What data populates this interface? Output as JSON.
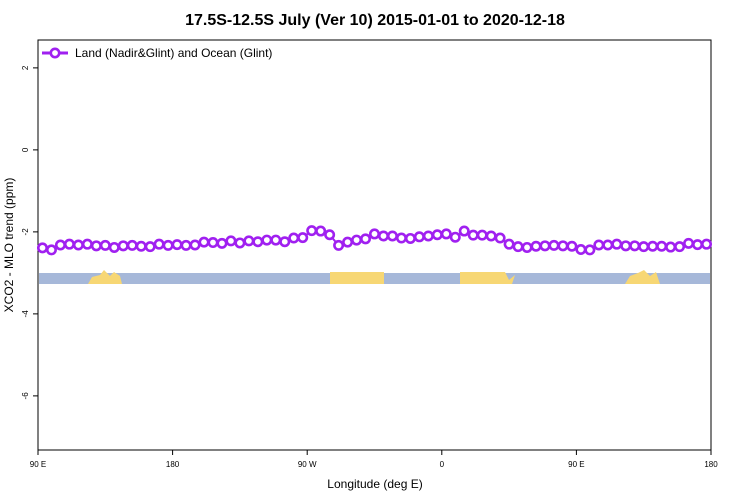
{
  "chart_data": {
    "type": "line",
    "title": "17.5S-12.5S July (Ver 10)   2015-01-01 to 2020-12-18",
    "x_label": "Longitude (deg E)",
    "y_label": "XCO2 - MLO trend (ppm)",
    "x": [
      93,
      99,
      105,
      111,
      117,
      123,
      129,
      135,
      141,
      147,
      153,
      159,
      165,
      171,
      177,
      183,
      189,
      195,
      201,
      207,
      213,
      219,
      225,
      231,
      237,
      243,
      249,
      255,
      261,
      267,
      273,
      279,
      285,
      291,
      297,
      303,
      309,
      315,
      321,
      327,
      333,
      339,
      345,
      351,
      357,
      363,
      369,
      375,
      381,
      387,
      393,
      399,
      405,
      411,
      417,
      423,
      429,
      435,
      441,
      447,
      453,
      459,
      465,
      471,
      477,
      483,
      489,
      495,
      501,
      507,
      513,
      519,
      525,
      531,
      537
    ],
    "series": [
      {
        "name": "Land (Nadir&Glint) and Ocean (Glint)",
        "color": "#a020f0",
        "values": [
          -2.39,
          -2.44,
          -2.32,
          -2.3,
          -2.32,
          -2.3,
          -2.34,
          -2.33,
          -2.38,
          -2.34,
          -2.33,
          -2.35,
          -2.36,
          -2.3,
          -2.33,
          -2.31,
          -2.33,
          -2.32,
          -2.25,
          -2.26,
          -2.28,
          -2.22,
          -2.27,
          -2.22,
          -2.24,
          -2.2,
          -2.2,
          -2.24,
          -2.15,
          -2.14,
          -1.97,
          -1.98,
          -2.07,
          -2.33,
          -2.25,
          -2.2,
          -2.17,
          -2.05,
          -2.1,
          -2.1,
          -2.15,
          -2.16,
          -2.12,
          -2.1,
          -2.07,
          -2.05,
          -2.13,
          -1.98,
          -2.08,
          -2.08,
          -2.1,
          -2.15,
          -2.3,
          -2.36,
          -2.38,
          -2.35,
          -2.34,
          -2.33,
          -2.34,
          -2.35,
          -2.43,
          -2.44,
          -2.32,
          -2.32,
          -2.3,
          -2.34,
          -2.34,
          -2.36,
          -2.35,
          -2.35,
          -2.37,
          -2.36,
          -2.28,
          -2.31,
          -2.3
        ]
      }
    ],
    "xlim": [
      90,
      540
    ],
    "xticks": [
      {
        "value": 90,
        "label": "90 E"
      },
      180,
      {
        "value": 270,
        "label": "90 W"
      },
      {
        "value": 360,
        "label": "0"
      },
      {
        "value": 450,
        "label": "90 E"
      },
      {
        "value": 540,
        "label": "180"
      }
    ],
    "ylim": [
      -7.32,
      2.68
    ],
    "yticks": [
      2,
      0,
      -2,
      -4,
      -6
    ],
    "legend": "top-left"
  }
}
